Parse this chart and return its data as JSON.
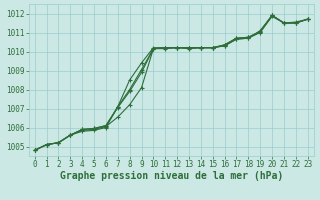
{
  "title": "Graphe pression niveau de la mer (hPa)",
  "bg_color": "#cce8e4",
  "grid_color": "#99cccc",
  "line_color": "#2d6e3a",
  "xlim": [
    -0.5,
    23.5
  ],
  "ylim": [
    1004.5,
    1012.5
  ],
  "yticks": [
    1005,
    1006,
    1007,
    1008,
    1009,
    1010,
    1011,
    1012
  ],
  "xticks": [
    0,
    1,
    2,
    3,
    4,
    5,
    6,
    7,
    8,
    9,
    10,
    11,
    12,
    13,
    14,
    15,
    16,
    17,
    18,
    19,
    20,
    21,
    22,
    23
  ],
  "series": [
    [
      1004.8,
      1005.1,
      1005.2,
      1005.6,
      1005.8,
      1005.85,
      1006.0,
      1007.1,
      1008.5,
      1009.4,
      1010.2,
      1010.2,
      1010.2,
      1010.15,
      1010.2,
      1010.2,
      1010.3,
      1010.65,
      1010.7,
      1011.1,
      1011.9,
      1011.5,
      1011.55,
      1011.7
    ],
    [
      1004.8,
      1005.1,
      1005.2,
      1005.6,
      1005.85,
      1005.9,
      1006.05,
      1006.55,
      1007.2,
      1008.1,
      1010.15,
      1010.15,
      1010.2,
      1010.2,
      1010.2,
      1010.2,
      1010.3,
      1010.65,
      1010.7,
      1011.0,
      1011.85,
      1011.5,
      1011.5,
      1011.7
    ],
    [
      1004.8,
      1005.1,
      1005.2,
      1005.6,
      1005.9,
      1005.95,
      1006.1,
      1007.05,
      1007.9,
      1008.9,
      1010.15,
      1010.2,
      1010.2,
      1010.2,
      1010.2,
      1010.2,
      1010.35,
      1010.7,
      1010.75,
      1011.05,
      1011.9,
      1011.5,
      1011.5,
      1011.7
    ],
    [
      1004.8,
      1005.1,
      1005.2,
      1005.6,
      1005.9,
      1005.95,
      1006.1,
      1007.1,
      1008.0,
      1009.05,
      1010.15,
      1010.2,
      1010.2,
      1010.2,
      1010.2,
      1010.2,
      1010.35,
      1010.7,
      1010.75,
      1011.05,
      1011.9,
      1011.5,
      1011.5,
      1011.7
    ]
  ],
  "marker": "+",
  "markersize": 3,
  "linewidth": 0.8,
  "title_fontsize": 7,
  "tick_fontsize": 5.5
}
